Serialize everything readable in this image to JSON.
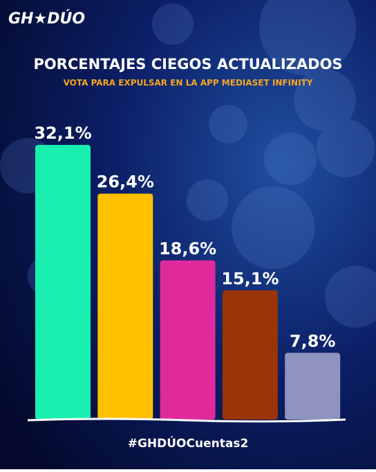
{
  "logo": "GH★DÚO",
  "hashtag": "#GHDÚOCuentas2",
  "chart_data": {
    "type": "bar",
    "title": "PORCENTAJES CIEGOS ACTUALIZADOS",
    "subtitle": "VOTA PARA EXPULSAR EN  LA APP MEDIASET INFINITY",
    "categories": [
      null,
      null,
      null,
      null,
      null
    ],
    "values": [
      32.1,
      26.4,
      18.6,
      15.1,
      7.8
    ],
    "value_labels": [
      "32,1%",
      "26,4%",
      "18,6%",
      "15,1%",
      "7,8%"
    ],
    "colors": [
      "#19f0b0",
      "#ffc000",
      "#e02a9c",
      "#9a3508",
      "#8f93c0"
    ]
  }
}
